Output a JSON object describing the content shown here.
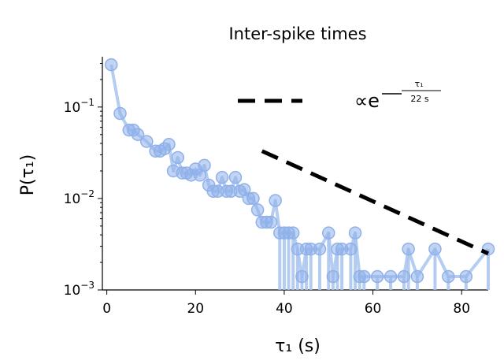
{
  "chart_data": {
    "type": "scatter",
    "title": "Inter-spike times",
    "xlabel": "τ₁ (s)",
    "ylabel": "P(τ₁)",
    "xlim": [
      -1,
      86
    ],
    "ylim_log10": [
      -3,
      -0.45
    ],
    "yscale": "log",
    "x_ticks": [
      0,
      20,
      40,
      60,
      80
    ],
    "y_ticks": [
      {
        "value": 0.1,
        "base": "10",
        "exp": "−1"
      },
      {
        "value": 0.01,
        "base": "10",
        "exp": "−2"
      },
      {
        "value": 0.001,
        "base": "10",
        "exp": "−3"
      }
    ],
    "grid": false,
    "series": [
      {
        "x": [
          1,
          3,
          5,
          6,
          7,
          9,
          11,
          12,
          13,
          14,
          15,
          16,
          17,
          18,
          19,
          20,
          21,
          22,
          23,
          24,
          25,
          26,
          27,
          28,
          29,
          30,
          31,
          32,
          33,
          34,
          35,
          36,
          37,
          38,
          39,
          40,
          41,
          42,
          43,
          44,
          45,
          46,
          48,
          50,
          51,
          52,
          53,
          55,
          56,
          57,
          58,
          61,
          64,
          67,
          68,
          70,
          74,
          77,
          81,
          86
        ],
        "y": [
          0.29,
          0.085,
          0.056,
          0.056,
          0.05,
          0.042,
          0.033,
          0.033,
          0.035,
          0.039,
          0.02,
          0.028,
          0.019,
          0.019,
          0.018,
          0.021,
          0.018,
          0.023,
          0.014,
          0.012,
          0.012,
          0.017,
          0.012,
          0.012,
          0.017,
          0.012,
          0.0125,
          0.01,
          0.01,
          0.0075,
          0.0055,
          0.0055,
          0.0055,
          0.0095,
          0.0042,
          0.0042,
          0.0042,
          0.0042,
          0.0028,
          0.0014,
          0.0028,
          0.0028,
          0.0028,
          0.0042,
          0.0014,
          0.0028,
          0.0028,
          0.0028,
          0.0042,
          0.0014,
          0.0014,
          0.0014,
          0.0014,
          0.0014,
          0.0028,
          0.0014,
          0.0028,
          0.0014,
          0.0014,
          0.0028
        ],
        "color": "#8fb1ea",
        "stem_to_axis": true
      }
    ],
    "fit_line": {
      "x": [
        35,
        86
      ],
      "y": [
        0.033,
        0.0025
      ],
      "style": "dashed",
      "color": "#000000"
    },
    "legend": {
      "placement": "top-right",
      "prefix": "∝e",
      "exp_numerator": "τ₁",
      "exp_denominator": "22 s"
    }
  }
}
